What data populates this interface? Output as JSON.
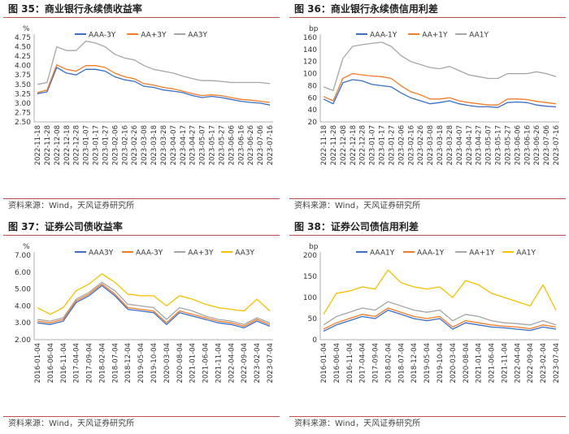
{
  "chart_data": [
    {
      "id": "fig35",
      "type": "line",
      "title": "图 35：商业银行永续债收益率",
      "source": "资料来源：Wind，天风证券研究所",
      "ylabel": "%",
      "ylim": [
        2.5,
        4.75
      ],
      "yticks": [
        "2.50",
        "2.75",
        "3.00",
        "3.25",
        "3.50",
        "3.75",
        "4.00",
        "4.25",
        "4.50",
        "4.75"
      ],
      "categories": [
        "2022-11-18",
        "2022-11-28",
        "2022-12-08",
        "2022-12-18",
        "2022-12-28",
        "2023-01-07",
        "2023-01-17",
        "2023-01-27",
        "2023-02-06",
        "2023-02-16",
        "2023-02-26",
        "2023-03-08",
        "2023-03-18",
        "2023-03-28",
        "2023-04-07",
        "2023-04-17",
        "2023-04-27",
        "2023-05-07",
        "2023-05-17",
        "2023-05-27",
        "2023-06-06",
        "2023-06-16",
        "2023-06-26",
        "2023-07-06",
        "2023-07-16"
      ],
      "series": [
        {
          "name": "AAA-3Y",
          "color": "#3a6fc4",
          "values": [
            3.25,
            3.3,
            3.95,
            3.8,
            3.75,
            3.9,
            3.9,
            3.85,
            3.7,
            3.62,
            3.58,
            3.45,
            3.42,
            3.35,
            3.32,
            3.28,
            3.2,
            3.15,
            3.18,
            3.15,
            3.1,
            3.05,
            3.02,
            3.0,
            2.95
          ]
        },
        {
          "name": "AA+3Y",
          "color": "#f07c28",
          "values": [
            3.28,
            3.35,
            4.02,
            3.9,
            3.85,
            4.0,
            4.0,
            3.95,
            3.8,
            3.7,
            3.65,
            3.52,
            3.48,
            3.42,
            3.38,
            3.32,
            3.25,
            3.2,
            3.22,
            3.2,
            3.15,
            3.1,
            3.08,
            3.05,
            3.02
          ]
        },
        {
          "name": "AA3Y",
          "color": "#a6a6a6",
          "values": [
            3.5,
            3.55,
            4.5,
            4.4,
            4.4,
            4.65,
            4.6,
            4.5,
            4.3,
            4.2,
            4.15,
            4.0,
            3.9,
            3.85,
            3.8,
            3.72,
            3.65,
            3.6,
            3.6,
            3.58,
            3.55,
            3.55,
            3.55,
            3.55,
            3.52
          ]
        }
      ]
    },
    {
      "id": "fig36",
      "type": "line",
      "title": "图 36：商业银行永续债信用利差",
      "source": "资料来源：Wind，天风证券研究所",
      "ylabel": "bp",
      "ylim": [
        20,
        160
      ],
      "yticks": [
        "20",
        "40",
        "60",
        "80",
        "100",
        "120",
        "140",
        "160"
      ],
      "categories": [
        "2022-11-18",
        "2022-11-28",
        "2022-12-08",
        "2022-12-18",
        "2022-12-28",
        "2023-01-07",
        "2023-01-17",
        "2023-01-27",
        "2023-02-06",
        "2023-02-16",
        "2023-02-26",
        "2023-03-08",
        "2023-03-18",
        "2023-03-28",
        "2023-04-07",
        "2023-04-17",
        "2023-04-27",
        "2023-05-07",
        "2023-05-17",
        "2023-05-27",
        "2023-06-06",
        "2023-06-16",
        "2023-06-26",
        "2023-07-06",
        "2023-07-16"
      ],
      "series": [
        {
          "name": "AAA-1Y",
          "color": "#3a6fc4",
          "values": [
            58,
            50,
            85,
            90,
            88,
            82,
            80,
            78,
            68,
            60,
            55,
            50,
            52,
            55,
            50,
            47,
            45,
            45,
            44,
            52,
            53,
            52,
            48,
            46,
            45
          ]
        },
        {
          "name": "AA+1Y",
          "color": "#f07c28",
          "values": [
            62,
            55,
            92,
            100,
            98,
            96,
            95,
            92,
            80,
            70,
            65,
            58,
            58,
            60,
            55,
            52,
            50,
            48,
            48,
            58,
            58,
            57,
            54,
            52,
            50
          ]
        },
        {
          "name": "AA1Y",
          "color": "#a6a6a6",
          "values": [
            78,
            72,
            125,
            145,
            148,
            150,
            152,
            145,
            130,
            120,
            115,
            110,
            108,
            112,
            105,
            98,
            95,
            92,
            92,
            100,
            100,
            100,
            103,
            100,
            95
          ]
        }
      ]
    },
    {
      "id": "fig37",
      "type": "line",
      "title": "图 37：证券公司债收益率",
      "source": "资料来源：Wind，天风证券研究所",
      "ylabel": "%",
      "ylim": [
        2.0,
        7.0
      ],
      "yticks": [
        "2.00",
        "3.00",
        "4.00",
        "5.00",
        "6.00",
        "7.00"
      ],
      "categories": [
        "2016-01-04",
        "2016-06-04",
        "2016-11-04",
        "2017-04-04",
        "2017-09-04",
        "2018-02-04",
        "2018-07-04",
        "2018-12-04",
        "2019-05-04",
        "2019-10-04",
        "2020-03-04",
        "2020-08-04",
        "2021-01-04",
        "2021-06-04",
        "2021-11-04",
        "2022-04-04",
        "2022-09-04",
        "2023-02-04",
        "2023-07-04"
      ],
      "series": [
        {
          "name": "AAA3Y",
          "color": "#3a6fc4",
          "values": [
            3.0,
            2.9,
            3.1,
            4.2,
            4.6,
            5.2,
            4.6,
            3.8,
            3.7,
            3.6,
            2.9,
            3.6,
            3.4,
            3.2,
            3.0,
            2.9,
            2.7,
            3.1,
            2.8
          ]
        },
        {
          "name": "AAA-3Y",
          "color": "#f07c28",
          "values": [
            3.1,
            3.0,
            3.2,
            4.3,
            4.7,
            5.3,
            4.7,
            3.9,
            3.8,
            3.7,
            3.0,
            3.7,
            3.5,
            3.3,
            3.1,
            3.0,
            2.8,
            3.2,
            2.9
          ]
        },
        {
          "name": "AA+3Y",
          "color": "#a6a6a6",
          "values": [
            3.2,
            3.1,
            3.3,
            4.4,
            4.8,
            5.4,
            4.9,
            4.1,
            4.0,
            3.9,
            3.2,
            3.9,
            3.7,
            3.4,
            3.2,
            3.1,
            2.9,
            3.3,
            3.0
          ]
        },
        {
          "name": "AA3Y",
          "color": "#f5c000",
          "values": [
            3.9,
            3.5,
            3.9,
            4.9,
            5.3,
            5.9,
            5.4,
            4.7,
            4.6,
            4.6,
            4.0,
            4.6,
            4.4,
            4.1,
            3.9,
            3.8,
            3.7,
            4.4,
            3.7
          ]
        }
      ]
    },
    {
      "id": "fig38",
      "type": "line",
      "title": "图 38：证券公司债信用利差",
      "source": "资料来源：Wind，天风证券研究所",
      "ylabel": "bp",
      "ylim": [
        0,
        200
      ],
      "yticks": [
        "0",
        "50",
        "100",
        "150",
        "200"
      ],
      "categories": [
        "2016-01-04",
        "2016-06-04",
        "2016-11-04",
        "2017-04-04",
        "2017-09-04",
        "2018-02-04",
        "2018-07-04",
        "2018-12-04",
        "2019-05-04",
        "2019-10-04",
        "2020-03-04",
        "2020-08-04",
        "2021-01-04",
        "2021-06-04",
        "2021-11-04",
        "2022-04-04",
        "2022-09-04",
        "2023-02-04",
        "2023-07-04"
      ],
      "series": [
        {
          "name": "AAA1Y",
          "color": "#3a6fc4",
          "values": [
            20,
            35,
            45,
            55,
            50,
            70,
            60,
            50,
            45,
            50,
            25,
            40,
            35,
            30,
            28,
            25,
            22,
            30,
            25
          ]
        },
        {
          "name": "AAA-1Y",
          "color": "#f07c28",
          "values": [
            25,
            40,
            50,
            60,
            55,
            75,
            65,
            55,
            50,
            55,
            30,
            45,
            40,
            35,
            32,
            30,
            26,
            35,
            30
          ]
        },
        {
          "name": "AA+1Y",
          "color": "#a6a6a6",
          "values": [
            35,
            55,
            65,
            75,
            70,
            90,
            80,
            70,
            65,
            70,
            45,
            60,
            55,
            45,
            40,
            38,
            35,
            45,
            35
          ]
        },
        {
          "name": "AA1Y",
          "color": "#f5c000",
          "values": [
            60,
            110,
            115,
            125,
            120,
            165,
            135,
            125,
            120,
            125,
            100,
            140,
            130,
            110,
            100,
            90,
            80,
            130,
            70
          ]
        }
      ]
    }
  ]
}
